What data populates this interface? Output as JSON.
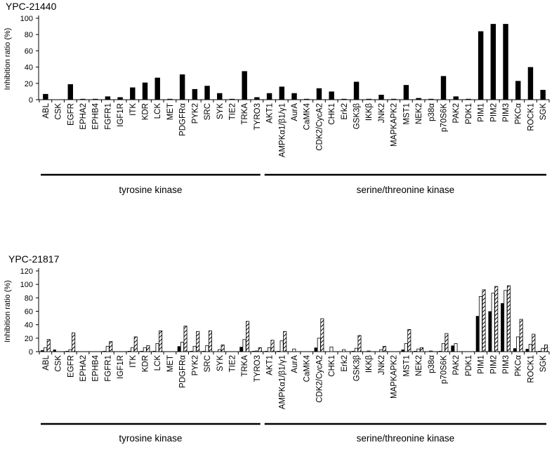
{
  "chart_data": [
    {
      "type": "bar",
      "title": "YPC-21440",
      "ylabel": "Inhibition ratio (%)",
      "xlabel": "",
      "ylim": [
        0,
        100
      ],
      "yticks": [
        0,
        20,
        40,
        60,
        80,
        100
      ],
      "grid": false,
      "categories": [
        "ABL",
        "CSK",
        "EGFR",
        "EPHA2",
        "EPHB4",
        "FGFR1",
        "IGF1R",
        "ITK",
        "KDR",
        "LCK",
        "MET",
        "PDGFRα",
        "PYK2",
        "SRC",
        "SYK",
        "TIE2",
        "TRKA",
        "TYRO3",
        "AKT1",
        "AMPKα1/β1/γ1",
        "AurA",
        "CaMK4",
        "CDK2/CycA2",
        "CHK1",
        "Erk2",
        "GSK3β",
        "IKKβ",
        "JNK2",
        "MAPKAPK2",
        "MST1",
        "NEK2",
        "p38α",
        "p70S6K",
        "PAK2",
        "PDK1",
        "PIM1",
        "PIM2",
        "PIM3",
        "PKCα",
        "ROCK1",
        "SGK"
      ],
      "series": [
        {
          "name": "YPC-21440",
          "pattern": "solid",
          "values": [
            7,
            0,
            19,
            1,
            1,
            4,
            3,
            15,
            21,
            27,
            1,
            31,
            13,
            17,
            8,
            1,
            35,
            3,
            8,
            16,
            8,
            1,
            14,
            10,
            1,
            22,
            1,
            6,
            1,
            18,
            2,
            1,
            29,
            4,
            1,
            84,
            93,
            93,
            23,
            40,
            12
          ]
        }
      ],
      "groups": [
        {
          "label": "tyrosine kinase",
          "from": 0,
          "to": 17
        },
        {
          "label": "serine/threonine kinase",
          "from": 18,
          "to": 40
        }
      ]
    },
    {
      "type": "bar",
      "title": "YPC-21817",
      "ylabel": "Inhibition ratio (%)",
      "xlabel": "",
      "ylim": [
        0,
        120
      ],
      "yticks": [
        0,
        20,
        40,
        60,
        80,
        100,
        120
      ],
      "grid": false,
      "categories": [
        "ABL",
        "CSK",
        "EGFR",
        "EPHA2",
        "EPHB4",
        "FGFR1",
        "IGF1R",
        "ITK",
        "KDR",
        "LCK",
        "MET",
        "PDGFRα",
        "PYK2",
        "SRC",
        "SYK",
        "TIE2",
        "TRKA",
        "TYRO3",
        "AKT1",
        "AMPKα1/β1/γ1",
        "AurA",
        "CaMK4",
        "CDK2/CycA2",
        "CHK1",
        "Erk2",
        "GSK3β",
        "IKKβ",
        "JNK2",
        "MAPKAPK2",
        "MST1",
        "NEK2",
        "p38α",
        "p70S6K",
        "PAK2",
        "PDK1",
        "PIM1",
        "PIM2",
        "PIM3",
        "PKCα",
        "ROCK1",
        "SGK"
      ],
      "series": [
        {
          "name": "series 1",
          "pattern": "solid",
          "values": [
            2,
            3,
            1,
            0,
            0,
            1,
            0,
            1,
            1,
            1,
            0,
            8,
            1,
            1,
            0,
            0,
            7,
            1,
            1,
            1,
            0,
            0,
            6,
            0,
            0,
            1,
            0,
            0,
            0,
            3,
            1,
            0,
            1,
            9,
            0,
            53,
            60,
            72,
            5,
            4,
            1
          ]
        },
        {
          "name": "series 2",
          "pattern": "white",
          "values": [
            6,
            0,
            3,
            0,
            0,
            8,
            0,
            6,
            6,
            12,
            0,
            14,
            8,
            9,
            3,
            0,
            18,
            1,
            6,
            16,
            4,
            0,
            20,
            7,
            3,
            5,
            1,
            3,
            0,
            12,
            4,
            1,
            12,
            12,
            0,
            82,
            87,
            91,
            22,
            11,
            5
          ]
        },
        {
          "name": "series 3",
          "pattern": "hatched",
          "values": [
            18,
            0,
            28,
            0,
            0,
            15,
            0,
            22,
            9,
            31,
            0,
            38,
            30,
            31,
            10,
            0,
            45,
            6,
            17,
            30,
            0,
            0,
            49,
            0,
            0,
            24,
            0,
            8,
            0,
            33,
            6,
            0,
            27,
            0,
            0,
            92,
            97,
            98,
            48,
            26,
            10
          ]
        }
      ],
      "groups": [
        {
          "label": "tyrosine kinase",
          "from": 0,
          "to": 17
        },
        {
          "label": "serine/threonine kinase",
          "from": 18,
          "to": 40
        }
      ]
    }
  ]
}
